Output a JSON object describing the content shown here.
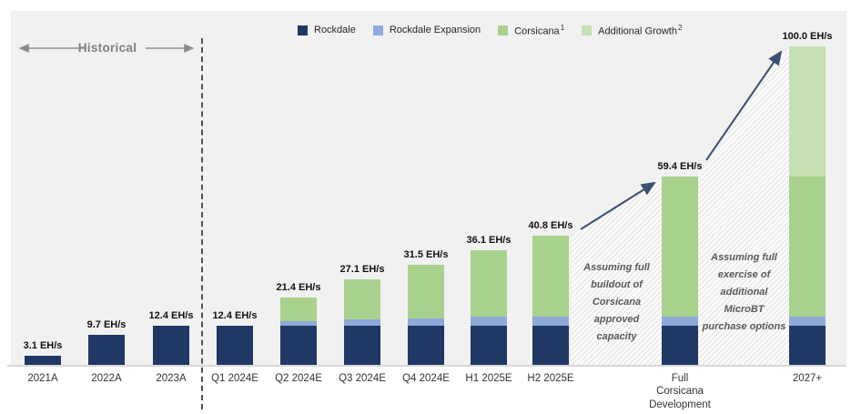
{
  "header": {
    "historical_label": "Historical"
  },
  "legend": {
    "items": [
      {
        "label": "Rockdale",
        "sup": "",
        "color": "#1F3864"
      },
      {
        "label": "Rockdale Expansion",
        "sup": "",
        "color": "#8EAADB"
      },
      {
        "label": "Corsicana",
        "sup": "1",
        "color": "#A9D18E"
      },
      {
        "label": "Additional Growth",
        "sup": "2",
        "color": "#C5E0B4"
      }
    ]
  },
  "annotations": {
    "corsicana": "Assuming full buildout of Corsicana approved capacity",
    "microbt": "Assuming full exercise of additional MicroBT purchase options"
  },
  "chart_data": {
    "type": "bar",
    "stacked": true,
    "unit": "EH/s",
    "title": "",
    "xlabel": "",
    "ylabel": "",
    "ylim": [
      0,
      100
    ],
    "grid": false,
    "legend_position": "top",
    "categories": [
      "2021A",
      "2022A",
      "2023A",
      "Q1 2024E",
      "Q2 2024E",
      "Q3 2024E",
      "Q4 2024E",
      "H1 2025E",
      "H2 2025E",
      "Full Corsicana Development",
      "2027+"
    ],
    "category_lines": [
      [
        "2021A"
      ],
      [
        "2022A"
      ],
      [
        "2023A"
      ],
      [
        "Q1 2024E"
      ],
      [
        "Q2 2024E"
      ],
      [
        "Q3 2024E"
      ],
      [
        "Q4 2024E"
      ],
      [
        "H1 2025E"
      ],
      [
        "H2 2025E"
      ],
      [
        "Full",
        "Corsicana",
        "Development"
      ],
      [
        "2027+"
      ]
    ],
    "series": [
      {
        "name": "Rockdale",
        "color": "#1F3864",
        "values": [
          3.1,
          9.7,
          12.4,
          12.4,
          12.4,
          12.4,
          12.4,
          12.4,
          12.4,
          12.4,
          12.4
        ]
      },
      {
        "name": "Rockdale Expansion",
        "color": "#8EAADB",
        "values": [
          0,
          0,
          0,
          0,
          1.5,
          2.0,
          2.5,
          3.0,
          3.0,
          3.0,
          3.0
        ]
      },
      {
        "name": "Corsicana",
        "color": "#A9D18E",
        "values": [
          0,
          0,
          0,
          0,
          7.5,
          12.7,
          16.6,
          20.7,
          25.4,
          44.0,
          44.0
        ]
      },
      {
        "name": "Additional Growth",
        "color": "#C5E0B4",
        "values": [
          0,
          0,
          0,
          0,
          0,
          0,
          0,
          0,
          0,
          0,
          40.6
        ]
      }
    ],
    "totals": [
      3.1,
      9.7,
      12.4,
      12.4,
      21.4,
      27.1,
      31.5,
      36.1,
      40.8,
      59.4,
      100.0
    ],
    "total_labels": [
      "3.1 EH/s",
      "9.7 EH/s",
      "12.4 EH/s",
      "12.4 EH/s",
      "21.4 EH/s",
      "27.1 EH/s",
      "31.5 EH/s",
      "36.1 EH/s",
      "40.8 EH/s",
      "59.4 EH/s",
      "100.0 EH/s"
    ]
  }
}
